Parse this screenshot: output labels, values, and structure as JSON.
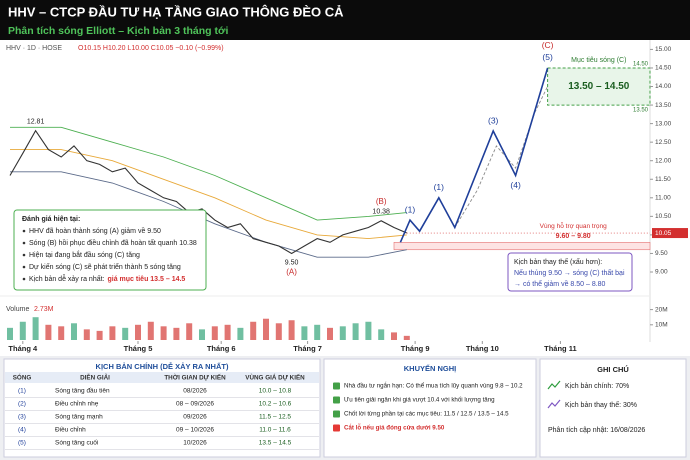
{
  "header": {
    "title": "HHV – CTCP ĐẦU TƯ HẠ TẦNG GIAO THÔNG ĐÈO CẢ",
    "subtitle": "Phân tích sóng Elliott – Kịch bản 3 tháng tới"
  },
  "chart_data": {
    "type": "line",
    "symbol": "HHV · 1D · HOSE",
    "ohlc": "O10.15  H10.20  L10.00  C10.05  −0.10 (−0.99%)",
    "xlim": [
      0,
      100
    ],
    "xticks": [
      {
        "value": 2,
        "label": "Tháng 4"
      },
      {
        "value": 20,
        "label": "Tháng 5"
      },
      {
        "value": 33,
        "label": "Tháng 6"
      },
      {
        "value": 46.5,
        "label": "Tháng 7"
      },
      {
        "value": 63.3,
        "label": "Tháng 9"
      },
      {
        "value": 73.8,
        "label": "Tháng 10"
      },
      {
        "value": 86,
        "label": "Tháng 11"
      }
    ],
    "ylim": [
      9.0,
      15.2
    ],
    "yticks": [
      {
        "value": 9,
        "label": "9.00"
      },
      {
        "value": 9.5,
        "label": "9.50"
      },
      {
        "value": 10,
        "label": "10.00"
      },
      {
        "value": 10.5,
        "label": "10.50"
      },
      {
        "value": 11,
        "label": "11.00"
      },
      {
        "value": 11.5,
        "label": "11.50"
      },
      {
        "value": 12,
        "label": "12.00"
      },
      {
        "value": 12.5,
        "label": "12.50"
      },
      {
        "value": 13,
        "label": "13.00"
      },
      {
        "value": 13.5,
        "label": "13.50"
      },
      {
        "value": 14,
        "label": "14.00"
      },
      {
        "value": 14.5,
        "label": "14.50"
      },
      {
        "value": 15,
        "label": "15.00"
      }
    ],
    "price": {
      "color": "#333333",
      "label_color": "#c62828",
      "x": [
        0,
        2,
        4,
        6,
        8,
        10,
        12,
        14,
        16,
        18,
        20,
        22,
        24,
        26,
        28,
        30,
        32,
        34,
        36,
        38,
        40,
        42,
        44,
        46,
        48,
        50,
        52,
        54,
        56,
        58,
        60,
        62
      ],
      "values": [
        11.6,
        12.2,
        12.81,
        12.3,
        12.1,
        12.4,
        12.0,
        11.9,
        11.7,
        11.8,
        11.4,
        11.2,
        11.0,
        10.9,
        10.6,
        10.7,
        10.4,
        10.2,
        10.3,
        9.9,
        9.8,
        9.7,
        9.5,
        9.7,
        9.9,
        9.8,
        10.0,
        10.1,
        10.2,
        10.38,
        10.2,
        10.05
      ],
      "value_labels": [
        null,
        null,
        "12.81",
        null,
        null,
        null,
        null,
        null,
        null,
        null,
        null,
        null,
        null,
        null,
        null,
        null,
        null,
        null,
        null,
        null,
        null,
        null,
        "9.50",
        null,
        null,
        null,
        null,
        null,
        null,
        "10.38",
        null,
        null
      ],
      "wave_labels": [
        null,
        null,
        null,
        null,
        null,
        null,
        null,
        null,
        null,
        null,
        null,
        null,
        null,
        null,
        null,
        null,
        null,
        null,
        null,
        null,
        null,
        null,
        "(A)",
        null,
        null,
        null,
        null,
        null,
        null,
        "(B)",
        null,
        null
      ]
    },
    "bands": [
      {
        "color": "#e8a93a",
        "x": [
          0,
          8,
          16,
          24,
          32,
          40,
          48,
          56,
          62
        ],
        "values": [
          12.3,
          12.3,
          12.0,
          11.5,
          11.0,
          10.4,
          10.0,
          9.9,
          10.0
        ]
      },
      {
        "color": "#4caf50",
        "x": [
          0,
          8,
          16,
          24,
          32,
          40,
          48,
          56,
          62
        ],
        "values": [
          12.9,
          12.9,
          12.5,
          12.1,
          11.6,
          11.0,
          10.4,
          10.5,
          10.6
        ]
      },
      {
        "color": "#5c6b8a",
        "x": [
          0,
          8,
          16,
          24,
          32,
          40,
          48,
          56,
          62
        ],
        "values": [
          11.7,
          11.7,
          11.4,
          10.9,
          10.3,
          9.8,
          9.4,
          9.4,
          9.6
        ]
      }
    ],
    "projection": {
      "color": "#1f3f9a",
      "x": [
        61,
        62.5,
        64,
        67,
        69.5,
        75.5,
        79,
        84
      ],
      "values": [
        9.8,
        10.4,
        10.1,
        11.0,
        10.2,
        12.8,
        11.6,
        14.5
      ],
      "wave_labels": [
        null,
        "(1)",
        null,
        "(1)",
        null,
        "(3)",
        "(4)",
        "(5)"
      ],
      "final_label": "(C)"
    },
    "alternative": {
      "color": "#8a8a8a",
      "x": [
        69.5,
        73,
        76,
        79,
        82,
        84
      ],
      "values": [
        10.2,
        11.2,
        12.4,
        11.8,
        13.3,
        14.0
      ]
    },
    "target_zone": {
      "title": "Mục tiêu sóng (C)",
      "range_label": "13.50 – 14.50",
      "low": 13.5,
      "high": 14.5,
      "low_label": "13.50",
      "high_label": "14.50"
    },
    "support_zone": {
      "title": "Vùng hỗ trợ quan trọng",
      "range_label": "9.60 – 9.80",
      "low": 9.6,
      "high": 9.8
    },
    "last_price": {
      "value": 10.05,
      "label": "10.05"
    },
    "volume": {
      "title": "Volume",
      "last": "2.73M",
      "up_color": "#4caf8a",
      "down_color": "#d9534f",
      "ylim": [
        0,
        25
      ],
      "yticks": [
        {
          "value": 10,
          "label": "10M"
        },
        {
          "value": 20,
          "label": "20M"
        }
      ],
      "values": [
        8,
        12,
        15,
        10,
        9,
        11,
        7,
        6,
        9,
        8,
        10,
        12,
        9,
        8,
        11,
        7,
        9,
        10,
        8,
        12,
        14,
        11,
        13,
        9,
        10,
        8,
        9,
        11,
        12,
        7,
        5,
        2.73
      ]
    }
  },
  "current_assessment": {
    "title": "Đánh giá hiện tại:",
    "items": [
      "HHV đã hoàn thành sóng (A) giảm về 9.50",
      "Sóng (B) hồi phục điều chỉnh đã hoàn tất quanh 10.38",
      "Hiện tại đang bắt đầu sóng (C) tăng",
      "Dự kiến sóng (C) sẽ phát triển thành 5 sóng tăng"
    ],
    "last": {
      "text": "Kịch bản dễ xảy ra nhất:",
      "highlight": "giá mục tiêu 13.5 – 14.5"
    }
  },
  "alt_scenario": {
    "title": "Kịch bản thay thế (xấu hơn):",
    "lines": [
      "Nếu thủng 9.50 → sóng (C) thất bại",
      "→ có thể giảm về 8.50 – 8.80"
    ]
  },
  "main_scenario": {
    "title": "KỊCH BẢN CHÍNH (DỄ XẢY RA NHẤT)",
    "columns": [
      "SÓNG",
      "DIỄN GIẢI",
      "THỜI GIAN DỰ KIẾN",
      "VÙNG GIÁ DỰ KIẾN"
    ],
    "rows": [
      [
        "(1)",
        "Sóng tăng đầu tiên",
        "08/2026",
        "10.0 – 10.8"
      ],
      [
        "(2)",
        "Điều chỉnh nhẹ",
        "08 – 09/2026",
        "10.2 – 10.6"
      ],
      [
        "(3)",
        "Sóng tăng mạnh",
        "09/2026",
        "11.5 – 12.5"
      ],
      [
        "(4)",
        "Điều chỉnh",
        "09 – 10/2026",
        "11.0 – 11.6"
      ],
      [
        "(5)",
        "Sóng tăng cuối",
        "10/2026",
        "13.5 – 14.5"
      ]
    ]
  },
  "recommendations": {
    "title": "KHUYẾN NGHỊ",
    "items": [
      "Nhà đầu tư ngắn hạn: Có thể mua tích lũy quanh vùng 9.8 – 10.2",
      "Ưu tiên giải ngân khi giá vượt 10.4 với khối lượng tăng",
      "Chốt lời từng phần tại các mục tiêu: 11.5 / 12.5 / 13.5 – 14.5"
    ],
    "stop_loss": "Cắt lỗ nếu giá đóng cửa dưới 9.50"
  },
  "notes": {
    "title": "GHI CHÚ",
    "main": "Kịch bản chính: 70%",
    "alt": "Kịch bản thay thế: 30%",
    "updated": "Phân tích cập nhật: 16/08/2026"
  }
}
